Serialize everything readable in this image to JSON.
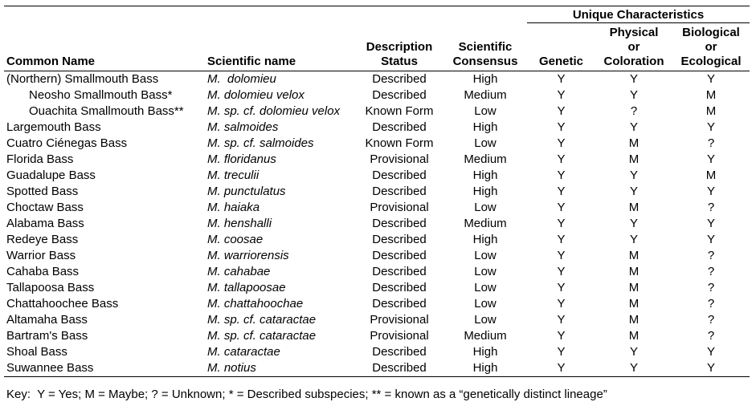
{
  "table": {
    "spanner": "Unique Characteristics",
    "headers": {
      "common_name": "Common Name",
      "scientific_name": "Scientific name",
      "description_status": "Description\nStatus",
      "scientific_consensus": "Scientific\nConsensus",
      "genetic": "Genetic",
      "physical_or_coloration": "Physical\nor\nColoration",
      "biological_or_ecological": "Biological\nor\nEcological"
    },
    "rows": [
      {
        "common": "(Northern) Smallmouth Bass",
        "indent": false,
        "sci": "M.  dolomieu",
        "status": "Described",
        "consensus": "High",
        "genetic": "Y",
        "physical": "Y",
        "biological": "Y"
      },
      {
        "common": "Neosho Smallmouth Bass*",
        "indent": true,
        "sci": "M. dolomieu velox",
        "status": "Described",
        "consensus": "Medium",
        "genetic": "Y",
        "physical": "Y",
        "biological": "M"
      },
      {
        "common": "Ouachita Smallmouth Bass**",
        "indent": true,
        "sci": "M. sp. cf. dolomieu velox",
        "status": "Known Form",
        "consensus": "Low",
        "genetic": "Y",
        "physical": "?",
        "biological": "M"
      },
      {
        "common": "Largemouth Bass",
        "indent": false,
        "sci": "M. salmoides",
        "status": "Described",
        "consensus": "High",
        "genetic": "Y",
        "physical": "Y",
        "biological": "Y"
      },
      {
        "common": "Cuatro Ciénegas Bass",
        "indent": false,
        "sci": "M. sp. cf. salmoides",
        "status": "Known Form",
        "consensus": "Low",
        "genetic": "Y",
        "physical": "M",
        "biological": "?"
      },
      {
        "common": "Florida Bass",
        "indent": false,
        "sci": "M. floridanus",
        "status": "Provisional",
        "consensus": "Medium",
        "genetic": "Y",
        "physical": "M",
        "biological": "Y"
      },
      {
        "common": "Guadalupe Bass",
        "indent": false,
        "sci": "M. treculii",
        "status": "Described",
        "consensus": "High",
        "genetic": "Y",
        "physical": "Y",
        "biological": "M"
      },
      {
        "common": "Spotted Bass",
        "indent": false,
        "sci": "M. punctulatus",
        "status": "Described",
        "consensus": "High",
        "genetic": "Y",
        "physical": "Y",
        "biological": "Y"
      },
      {
        "common": "Choctaw Bass",
        "indent": false,
        "sci": "M. haiaka",
        "status": "Provisional",
        "consensus": "Low",
        "genetic": "Y",
        "physical": "M",
        "biological": "?"
      },
      {
        "common": "Alabama Bass",
        "indent": false,
        "sci": "M. henshalli",
        "status": "Described",
        "consensus": "Medium",
        "genetic": "Y",
        "physical": "Y",
        "biological": "Y"
      },
      {
        "common": "Redeye Bass",
        "indent": false,
        "sci": "M. coosae",
        "status": "Described",
        "consensus": "High",
        "genetic": "Y",
        "physical": "Y",
        "biological": "Y"
      },
      {
        "common": "Warrior Bass",
        "indent": false,
        "sci": "M. warriorensis",
        "status": "Described",
        "consensus": "Low",
        "genetic": "Y",
        "physical": "M",
        "biological": "?"
      },
      {
        "common": "Cahaba Bass",
        "indent": false,
        "sci": "M. cahabae",
        "status": "Described",
        "consensus": "Low",
        "genetic": "Y",
        "physical": "M",
        "biological": "?"
      },
      {
        "common": "Tallapoosa Bass",
        "indent": false,
        "sci": "M. tallapoosae",
        "status": "Described",
        "consensus": "Low",
        "genetic": "Y",
        "physical": "M",
        "biological": "?"
      },
      {
        "common": "Chattahoochee Bass",
        "indent": false,
        "sci": "M. chattahoochae",
        "status": "Described",
        "consensus": "Low",
        "genetic": "Y",
        "physical": "M",
        "biological": "?"
      },
      {
        "common": "Altamaha Bass",
        "indent": false,
        "sci": "M. sp. cf. cataractae",
        "status": "Provisional",
        "consensus": "Low",
        "genetic": "Y",
        "physical": "M",
        "biological": "?"
      },
      {
        "common": "Bartram's Bass",
        "indent": false,
        "sci": "M. sp. cf. cataractae",
        "status": "Provisional",
        "consensus": "Medium",
        "genetic": "Y",
        "physical": "M",
        "biological": "?"
      },
      {
        "common": "Shoal Bass",
        "indent": false,
        "sci": "M. cataractae",
        "status": "Described",
        "consensus": "High",
        "genetic": "Y",
        "physical": "Y",
        "biological": "Y"
      },
      {
        "common": "Suwannee Bass",
        "indent": false,
        "sci": "M. notius",
        "status": "Described",
        "consensus": "High",
        "genetic": "Y",
        "physical": "Y",
        "biological": "Y"
      }
    ]
  },
  "key": "Key:  Y = Yes; M = Maybe; ? = Unknown; * = Described subspecies; ** = known as a “genetically distinct lineage”"
}
